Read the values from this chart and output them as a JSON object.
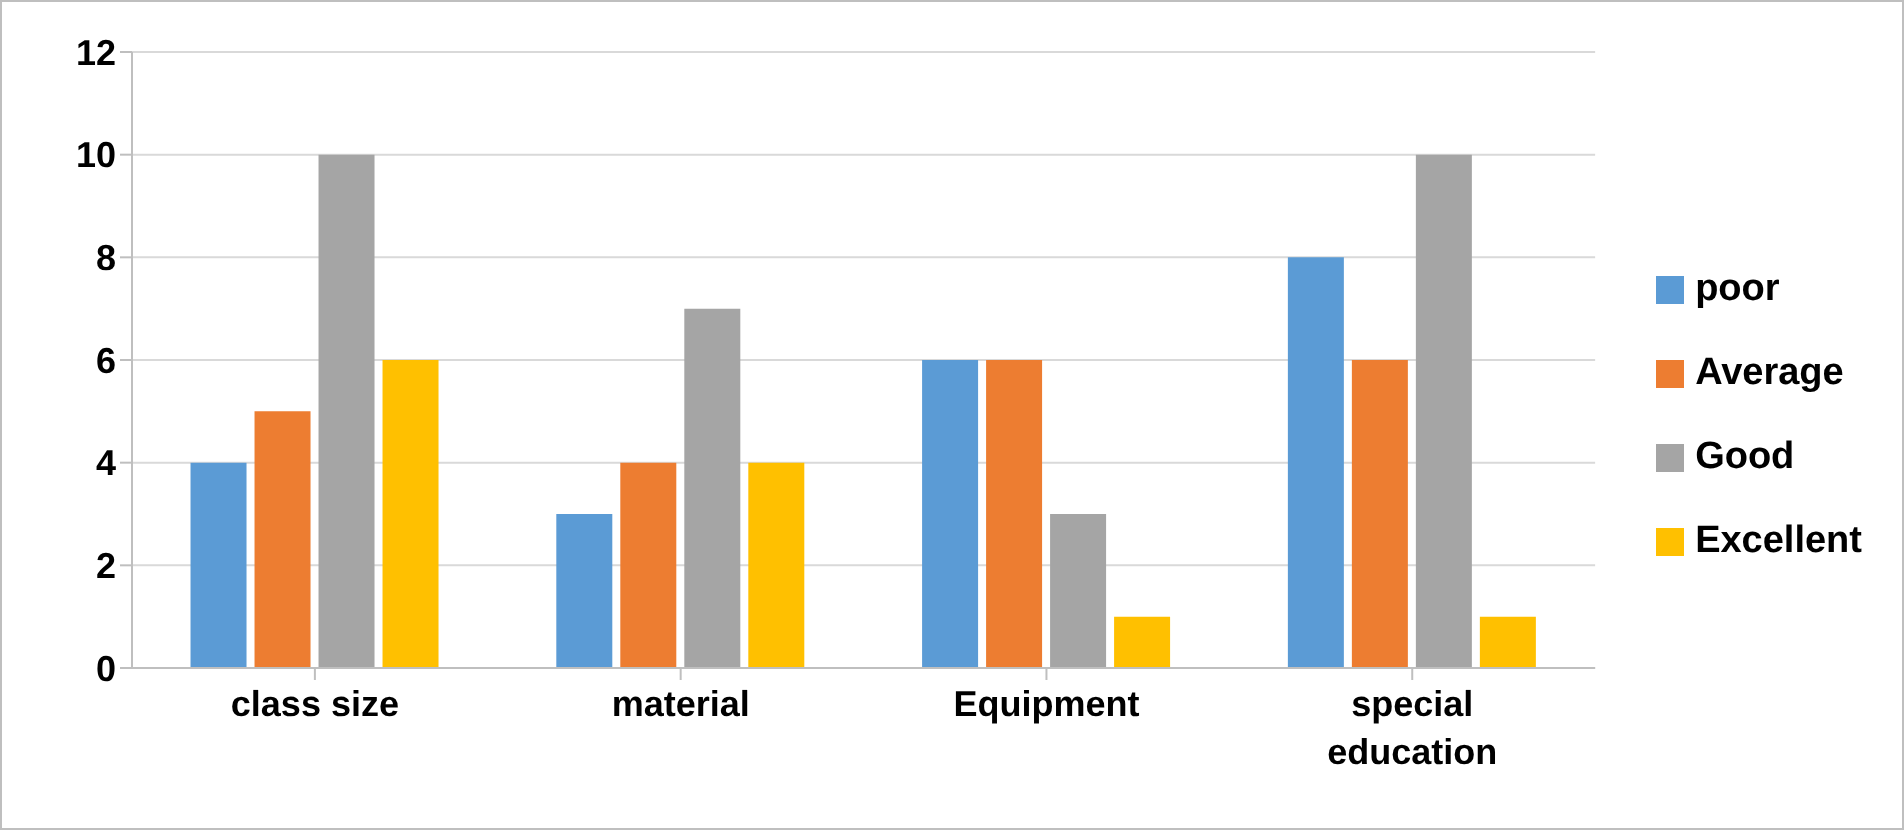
{
  "chart_data": {
    "type": "bar",
    "categories": [
      "class size",
      "material",
      "Equipment",
      "special education"
    ],
    "series": [
      {
        "name": "poor",
        "color": "#5b9bd5",
        "values": [
          4,
          3,
          6,
          8
        ]
      },
      {
        "name": "Average",
        "color": "#ed7d31",
        "values": [
          5,
          4,
          6,
          6
        ]
      },
      {
        "name": "Good",
        "color": "#a5a5a5",
        "values": [
          10,
          7,
          3,
          10
        ]
      },
      {
        "name": "Excellent",
        "color": "#ffc000",
        "values": [
          6,
          4,
          1,
          1
        ]
      }
    ],
    "ylim": [
      0,
      12
    ],
    "yticks": [
      0,
      2,
      4,
      6,
      8,
      10,
      12
    ],
    "grid": "y",
    "legend": "right"
  }
}
